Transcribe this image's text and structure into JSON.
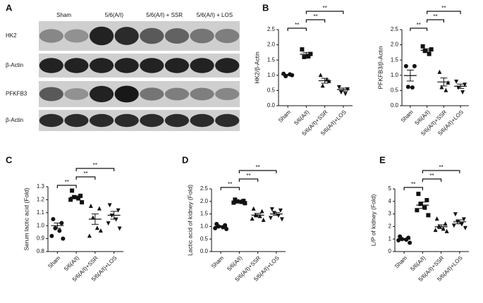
{
  "blot": {
    "panel_label": "A",
    "groups": [
      "Sham",
      "5/6(A/I)",
      "5/6(A/I) + SSR",
      "5/6(A/I) + LOS"
    ],
    "rows": [
      "HK2",
      "β-Actin",
      "PFKFB3",
      "β-Actin"
    ]
  },
  "chart_data": [
    {
      "type": "dotplot",
      "panel_label": "B",
      "y_label": "HK2/β-Actin",
      "categories": [
        "Sham",
        "5/6(A/I)",
        "5/6(A/I)+SSR",
        "5/6(A/I)+LOS"
      ],
      "markers": [
        "circle",
        "square",
        "triangle",
        "triangle-down"
      ],
      "color": "#111111",
      "points": [
        [
          1.05,
          1.0,
          0.97,
          1.03
        ],
        [
          1.85,
          1.7,
          1.6,
          1.62
        ],
        [
          1.0,
          0.8,
          0.65,
          0.85
        ],
        [
          0.62,
          0.55,
          0.45,
          0.4
        ]
      ],
      "mean": [
        1.01,
        1.69,
        0.82,
        0.53
      ],
      "sem": [
        0.02,
        0.06,
        0.08,
        0.05
      ],
      "ylim": [
        0,
        2.5
      ],
      "yticks": [
        {
          "value": 0,
          "label": "0.0"
        },
        0.5,
        {
          "value": 1,
          "label": "1.0"
        },
        1.5,
        {
          "value": 2,
          "label": "2.0"
        },
        2.5
      ],
      "annotations": [
        {
          "from": 0,
          "to": 1,
          "label": "**"
        },
        {
          "from": 1,
          "to": 2,
          "label": "**"
        },
        {
          "from": 1,
          "to": 3,
          "label": "**"
        }
      ]
    },
    {
      "type": "dotplot",
      "y_label": "PFKFB3/β-Actin",
      "categories": [
        "Sham",
        "5/6(A/I)",
        "5/6(A/I)+SSR",
        "5/6(A/I)+LOS"
      ],
      "markers": [
        "circle",
        "square",
        "triangle",
        "triangle-down"
      ],
      "color": "#111111",
      "points": [
        [
          1.3,
          1.3,
          0.62,
          0.6
        ],
        [
          1.95,
          1.85,
          1.8,
          1.7
        ],
        [
          1.1,
          0.75,
          0.6,
          0.5
        ],
        [
          0.8,
          0.7,
          0.6,
          0.45
        ]
      ],
      "mean": [
        0.99,
        1.82,
        0.78,
        0.64
      ],
      "sem": [
        0.18,
        0.05,
        0.13,
        0.07
      ],
      "ylim": [
        0,
        2.5
      ],
      "yticks": [
        {
          "value": 0,
          "label": "0.0"
        },
        0.5,
        {
          "value": 1,
          "label": "1.0"
        },
        1.5,
        {
          "value": 2,
          "label": "2.0"
        },
        2.5
      ],
      "annotations": [
        {
          "from": 0,
          "to": 1,
          "label": "**"
        },
        {
          "from": 1,
          "to": 2,
          "label": "**"
        },
        {
          "from": 1,
          "to": 3,
          "label": "**"
        }
      ]
    },
    {
      "type": "dotplot",
      "panel_label": "C",
      "y_label": "Serum lactic acid (Fold)",
      "categories": [
        "Sham",
        "5/6(A/I)",
        "5/6(A/I)+SSR",
        "5/6(A/I)+LOS"
      ],
      "markers": [
        "circle",
        "square",
        "triangle",
        "triangle-down"
      ],
      "color": "#111111",
      "points": [
        [
          1.05,
          1.02,
          0.98,
          0.96,
          0.92,
          0.9
        ],
        [
          1.27,
          1.23,
          1.22,
          1.21,
          1.2,
          1.18
        ],
        [
          1.15,
          1.13,
          1.06,
          0.98,
          0.92,
          0.96
        ],
        [
          1.16,
          1.12,
          1.08,
          1.05,
          1.02,
          0.98
        ]
      ],
      "mean": [
        1.0,
        1.22,
        1.05,
        1.08
      ],
      "sem": [
        0.02,
        0.01,
        0.04,
        0.03
      ],
      "ylim": [
        0.8,
        1.3
      ],
      "yticks": [
        0.8,
        0.9,
        {
          "value": 1,
          "label": "1.0"
        },
        1.1,
        1.2,
        1.3
      ],
      "annotations": [
        {
          "from": 0,
          "to": 1,
          "label": "**"
        },
        {
          "from": 1,
          "to": 2,
          "label": "**"
        },
        {
          "from": 1,
          "to": 3,
          "label": "**"
        }
      ]
    },
    {
      "type": "dotplot",
      "panel_label": "D",
      "y_label": "Lactic acid of kidney (Fold)",
      "categories": [
        "Sham",
        "5/6(A/I)",
        "5/6(A/I)+SSR",
        "5/6(A/I)+LOS"
      ],
      "markers": [
        "circle",
        "square",
        "triangle",
        "triangle-down"
      ],
      "color": "#111111",
      "points": [
        [
          1.1,
          1.05,
          1.0,
          0.97,
          0.93,
          0.9
        ],
        [
          2.07,
          2.02,
          2.0,
          1.98,
          1.95,
          1.93
        ],
        [
          1.7,
          1.6,
          1.45,
          1.4,
          1.3,
          1.25
        ],
        [
          1.7,
          1.65,
          1.55,
          1.45,
          1.35,
          1.3
        ]
      ],
      "mean": [
        1.0,
        1.99,
        1.45,
        1.5
      ],
      "sem": [
        0.03,
        0.02,
        0.07,
        0.06
      ],
      "ylim": [
        0,
        2.5
      ],
      "yticks": [
        {
          "value": 0,
          "label": "0.0"
        },
        0.5,
        {
          "value": 1,
          "label": "1.0"
        },
        1.5,
        {
          "value": 2,
          "label": "2.0"
        },
        2.5
      ],
      "annotations": [
        {
          "from": 0,
          "to": 1,
          "label": "**"
        },
        {
          "from": 1,
          "to": 2,
          "label": "**"
        },
        {
          "from": 1,
          "to": 3,
          "label": "**"
        }
      ]
    },
    {
      "type": "dotplot",
      "panel_label": "E",
      "y_label": "L/P of kidney (Fold)",
      "categories": [
        "Sham",
        "5/6(A/I)",
        "5/6(A/I)+SSR",
        "5/6(A/I)+LOS"
      ],
      "markers": [
        "circle",
        "square",
        "triangle",
        "triangle-down"
      ],
      "color": "#111111",
      "points": [
        [
          1.2,
          1.1,
          1.0,
          0.95,
          0.9,
          0.7
        ],
        [
          4.6,
          4.1,
          3.8,
          3.5,
          3.3,
          2.9
        ],
        [
          2.6,
          2.2,
          2.0,
          1.8,
          1.7,
          1.6
        ],
        [
          3.0,
          2.6,
          2.4,
          2.2,
          2.1,
          1.9
        ]
      ],
      "mean": [
        0.98,
        3.7,
        1.98,
        2.37
      ],
      "sem": [
        0.07,
        0.25,
        0.15,
        0.16
      ],
      "ylim": [
        0,
        5
      ],
      "yticks": [
        0,
        1,
        2,
        3,
        4,
        5
      ],
      "annotations": [
        {
          "from": 0,
          "to": 1,
          "label": "**"
        },
        {
          "from": 1,
          "to": 2,
          "label": "**"
        },
        {
          "from": 1,
          "to": 3,
          "label": "**"
        }
      ]
    }
  ]
}
